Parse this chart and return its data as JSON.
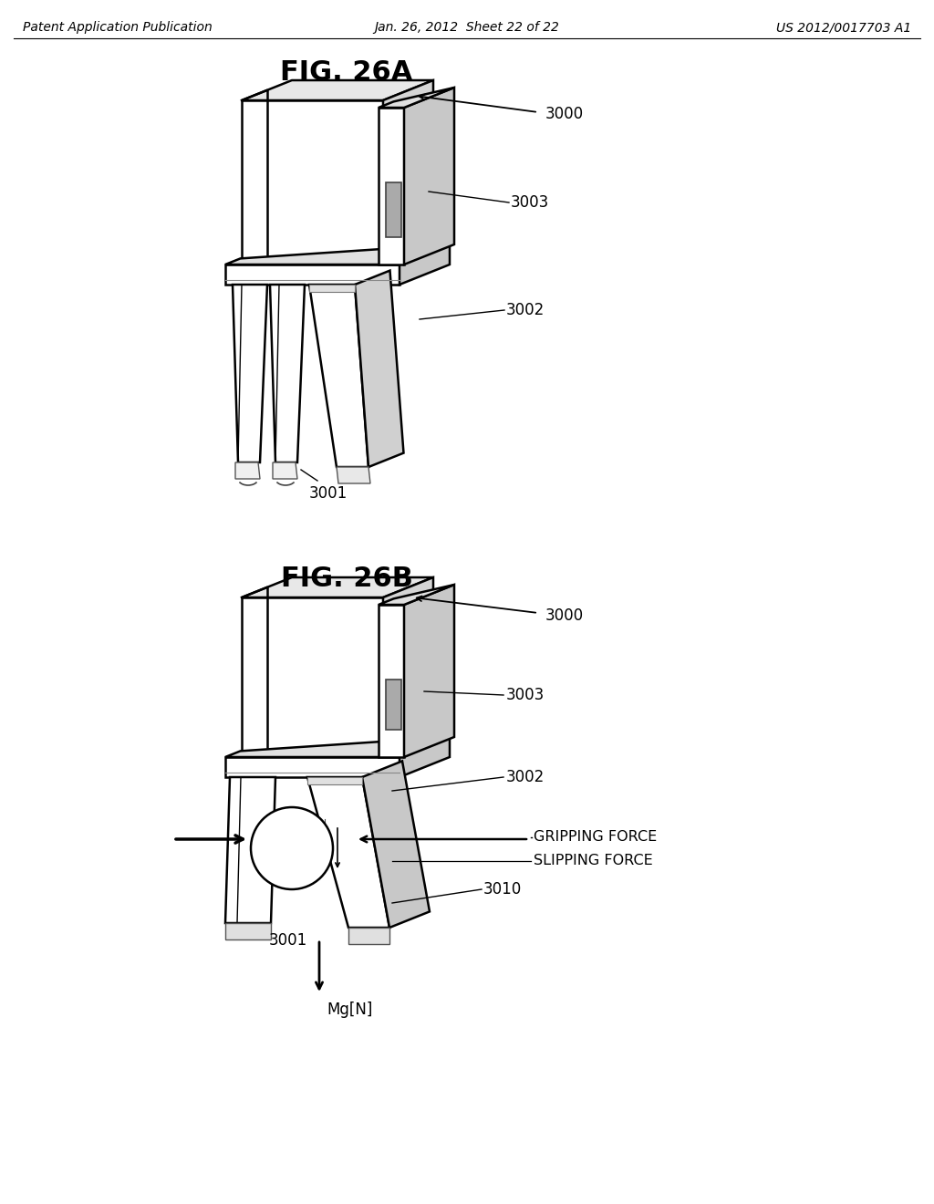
{
  "background_color": "#ffffff",
  "header_left": "Patent Application Publication",
  "header_center": "Jan. 26, 2012  Sheet 22 of 22",
  "header_right": "US 2012/0017703 A1",
  "fig_a_title": "FIG. 26A",
  "fig_b_title": "FIG. 26B",
  "label_3000": "3000",
  "label_3001": "3001",
  "label_3002": "3002",
  "label_3003": "3003",
  "label_3010": "3010",
  "label_gripping": "GRIPPING FORCE",
  "label_slipping": "SLIPPING FORCE",
  "label_mg": "Mg[N]",
  "line_color": "#000000",
  "line_width": 1.8,
  "header_fontsize": 11,
  "title_fontsize": 22,
  "label_fontsize": 12
}
